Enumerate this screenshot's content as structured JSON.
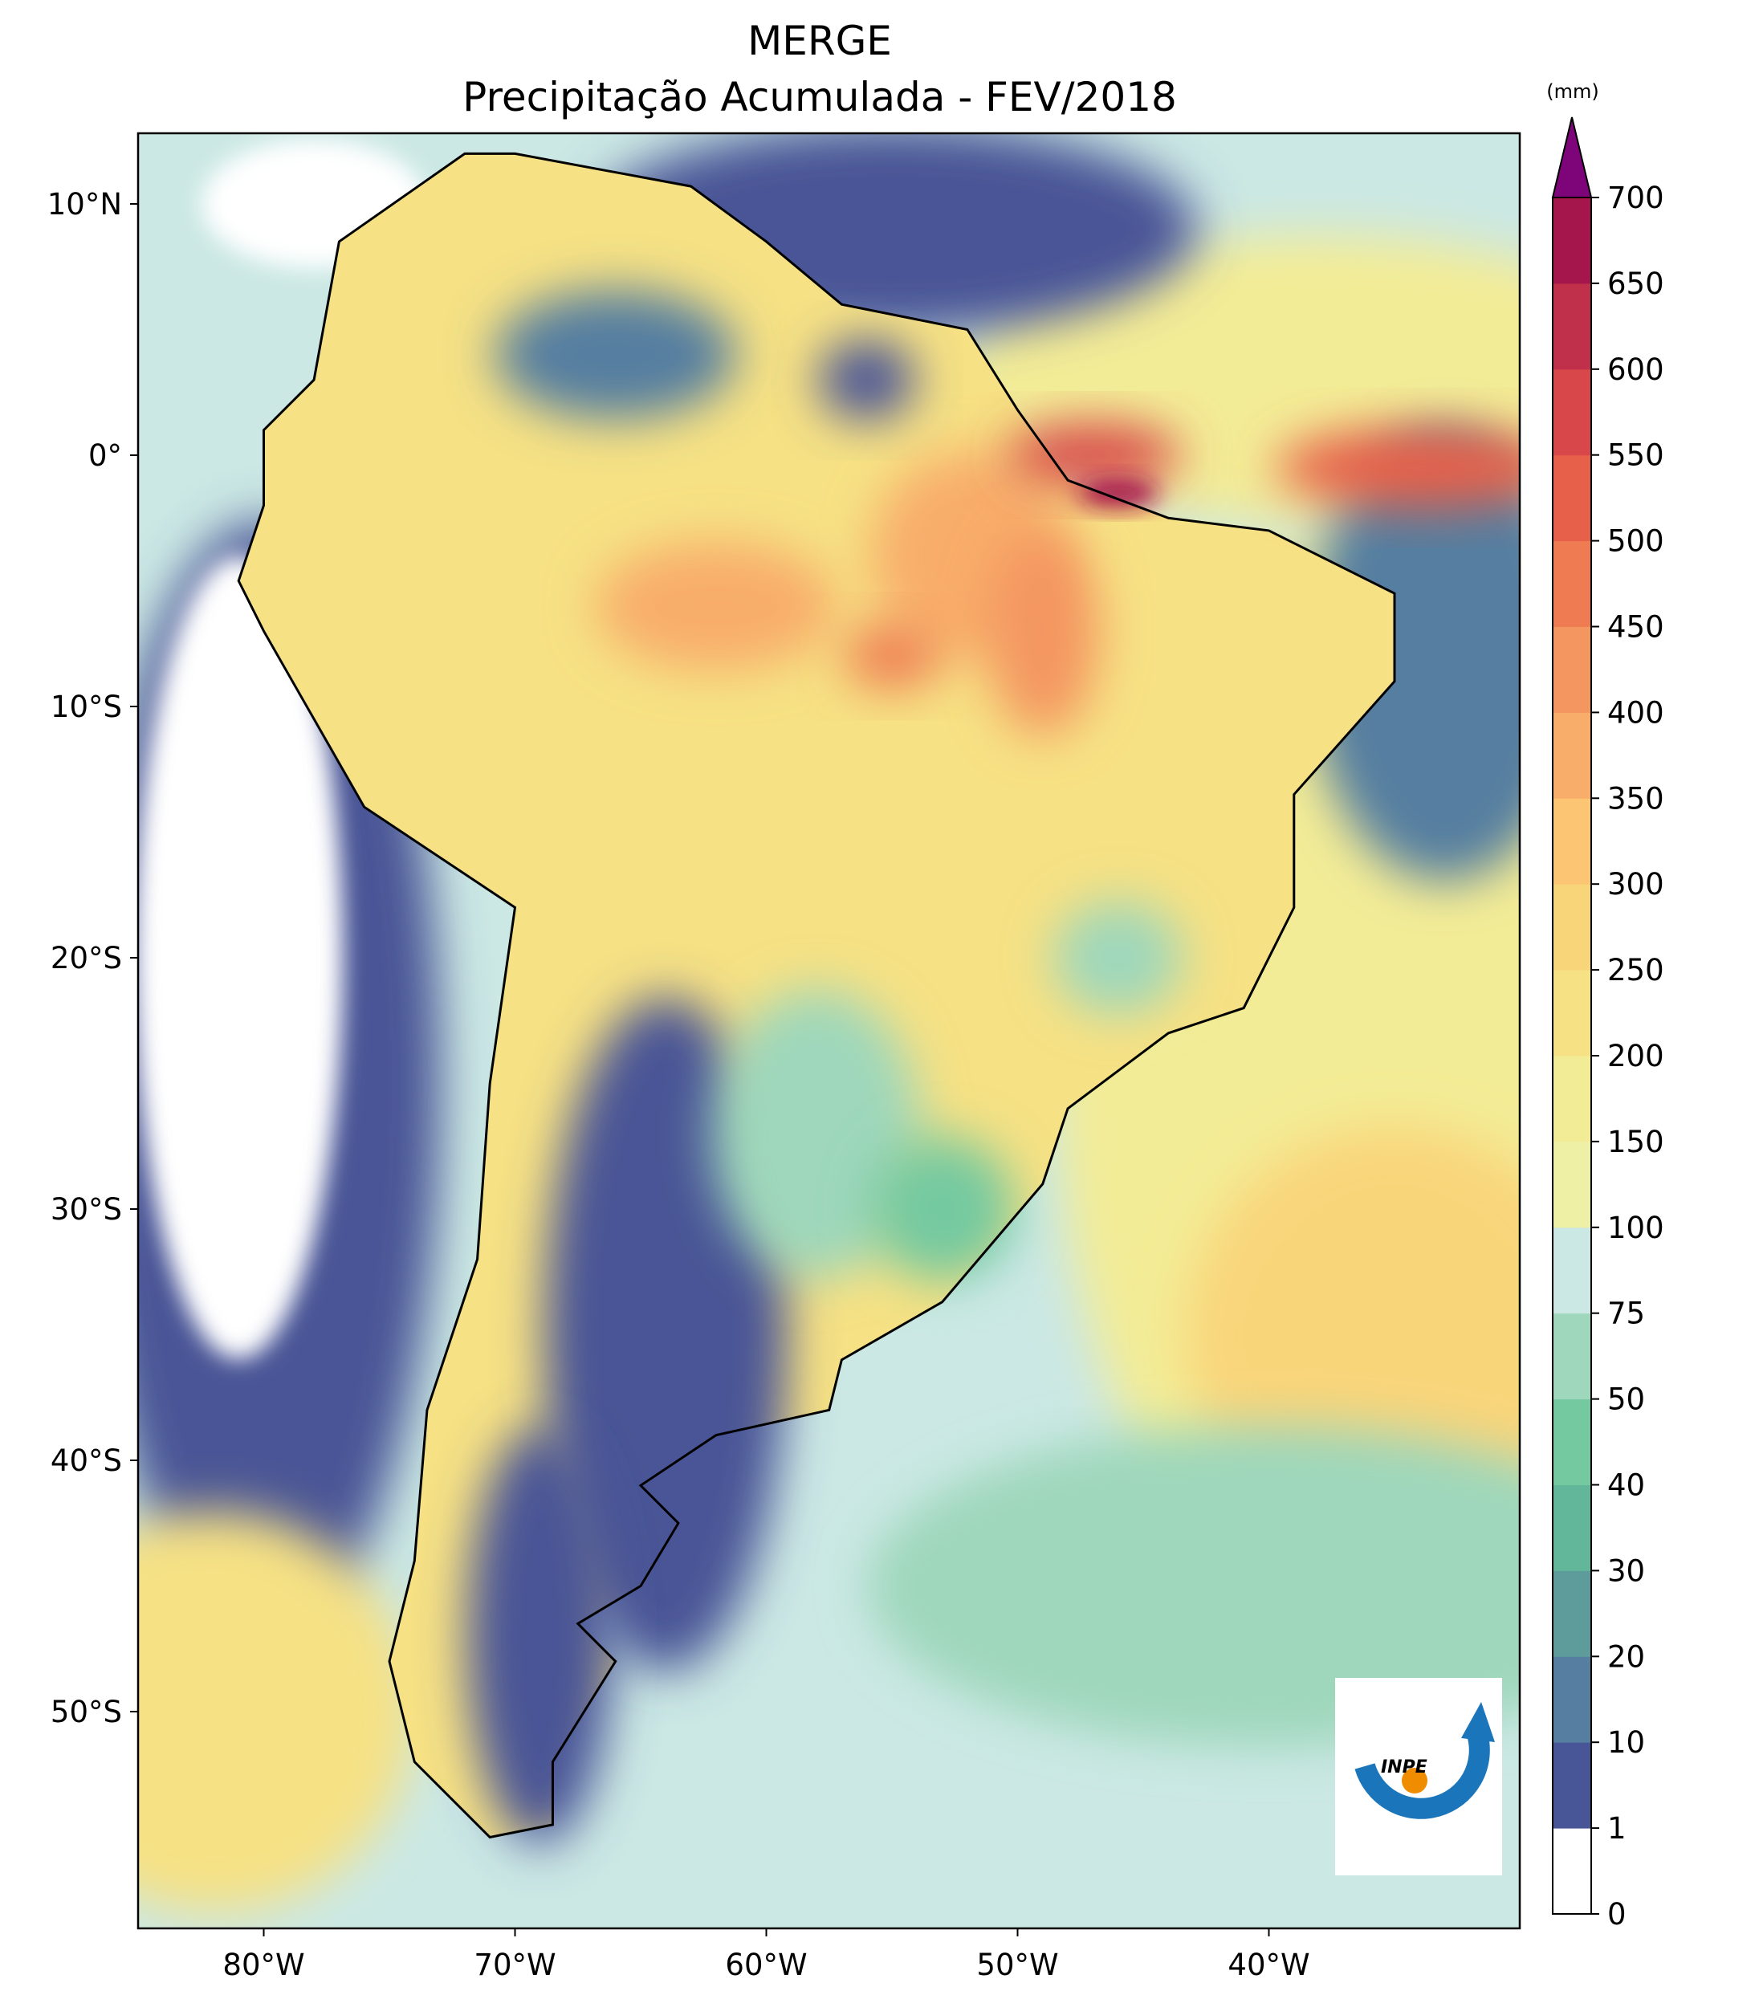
{
  "title": "MERGE",
  "subtitle": "Precipitação Acumulada - FEV/2018",
  "map": {
    "lon_ticks": [
      "80°W",
      "70°W",
      "60°W",
      "50°W",
      "40°W"
    ],
    "lat_ticks": [
      "10°N",
      "0°",
      "10°S",
      "20°S",
      "30°S",
      "40°S",
      "50°S"
    ]
  },
  "colorbar": {
    "unit": "(mm)",
    "levels": [
      0,
      1,
      10,
      20,
      30,
      40,
      50,
      75,
      100,
      150,
      200,
      250,
      300,
      350,
      400,
      450,
      500,
      550,
      600,
      650,
      700
    ],
    "colors": [
      "#ffffff",
      "#485596",
      "#557ea0",
      "#5e9c9c",
      "#62b69a",
      "#75c9a0",
      "#9ed7bb",
      "#cbe8e4",
      "#eef0a6",
      "#f3ec96",
      "#f6e184",
      "#f9d57a",
      "#fbc574",
      "#f8ad6a",
      "#f49660",
      "#ef7b52",
      "#e7604a",
      "#d8484a",
      "#c0304a",
      "#a5174c"
    ],
    "extend_color": "#7e0479"
  },
  "logo": "INPE"
}
